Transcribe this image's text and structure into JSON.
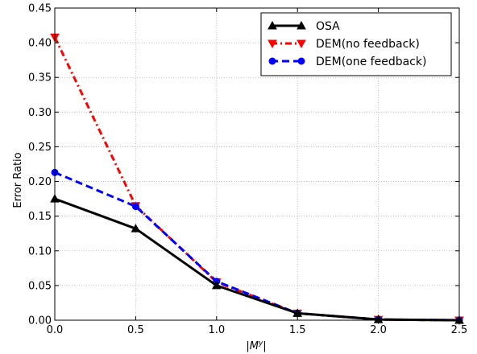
{
  "chart_data": {
    "type": "line",
    "title": "",
    "xlabel": "|M^{y}|",
    "ylabel": "Error Ratio",
    "xlim": [
      0.0,
      2.5
    ],
    "ylim": [
      0.0,
      0.45
    ],
    "x_ticks": [
      "0.0",
      "0.5",
      "1.0",
      "1.5",
      "2.0",
      "2.5"
    ],
    "y_ticks": [
      "0.00",
      "0.05",
      "0.10",
      "0.15",
      "0.20",
      "0.25",
      "0.30",
      "0.35",
      "0.40",
      "0.45"
    ],
    "grid": true,
    "legend_position": "top-right",
    "x": [
      0.0,
      0.5,
      1.0,
      1.5,
      2.0,
      2.5
    ],
    "series": [
      {
        "name": "OSA",
        "values": [
          0.175,
          0.132,
          0.05,
          0.01,
          0.001,
          0.0
        ],
        "color": "#000000",
        "line_style": "solid",
        "marker": "triangle-up"
      },
      {
        "name": "DEM(no feedback)",
        "values": [
          0.408,
          0.165,
          0.055,
          0.01,
          0.001,
          0.0
        ],
        "color": "#ff0000",
        "line_style": "dash-dot",
        "marker": "triangle-down"
      },
      {
        "name": "DEM(one feedback)",
        "values": [
          0.213,
          0.164,
          0.056,
          0.01,
          0.001,
          0.0
        ],
        "color": "#0000ff",
        "line_style": "dashed",
        "marker": "circle"
      }
    ]
  }
}
